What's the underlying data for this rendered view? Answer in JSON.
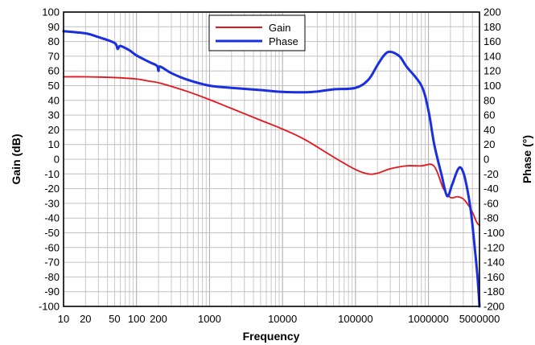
{
  "chart_data": {
    "type": "line",
    "title": "",
    "xlabel": "Frequency",
    "ylabel_left": "Gain (dB)",
    "ylabel_right": "Phase (°)",
    "x_scale": "log",
    "xlim": [
      10,
      5000000
    ],
    "ylim_left": [
      -100,
      100
    ],
    "ylim_right": [
      -200,
      200
    ],
    "grid": true,
    "legend_position": "top-center",
    "x_ticks": [
      {
        "value": 10,
        "label": "10"
      },
      {
        "value": 20,
        "label": "20"
      },
      {
        "value": 50,
        "label": "50"
      },
      {
        "value": 100,
        "label": "100"
      },
      {
        "value": 200,
        "label": "200"
      },
      {
        "value": 1000,
        "label": "1000"
      },
      {
        "value": 10000,
        "label": "10000"
      },
      {
        "value": 100000,
        "label": "100000"
      },
      {
        "value": 1000000,
        "label": "1000000"
      },
      {
        "value": 5000000,
        "label": "5000000"
      }
    ],
    "y_left_ticks": [
      100,
      90,
      80,
      70,
      60,
      50,
      40,
      30,
      20,
      10,
      0,
      -10,
      -20,
      -30,
      -40,
      -50,
      -60,
      -70,
      -80,
      -90,
      -100
    ],
    "y_right_ticks": [
      200,
      180,
      160,
      140,
      120,
      100,
      80,
      60,
      40,
      20,
      0,
      -20,
      -40,
      -60,
      -80,
      -100,
      -120,
      -140,
      -160,
      -180,
      -200
    ],
    "series": [
      {
        "name": "Gain",
        "axis": "left",
        "color": "#e8141b",
        "points": [
          [
            10,
            56
          ],
          [
            20,
            56
          ],
          [
            50,
            55.5
          ],
          [
            100,
            54.5
          ],
          [
            150,
            53
          ],
          [
            200,
            52
          ],
          [
            300,
            49.5
          ],
          [
            500,
            46
          ],
          [
            1000,
            40.5
          ],
          [
            2000,
            34.5
          ],
          [
            5000,
            26.5
          ],
          [
            10000,
            20.5
          ],
          [
            20000,
            13.5
          ],
          [
            50000,
            1.5
          ],
          [
            100000,
            -7
          ],
          [
            150000,
            -10
          ],
          [
            200000,
            -9.5
          ],
          [
            300000,
            -6.5
          ],
          [
            500000,
            -4.5
          ],
          [
            800000,
            -4.5
          ],
          [
            1100000,
            -3.5
          ],
          [
            1300000,
            -8
          ],
          [
            1600000,
            -20
          ],
          [
            2000000,
            -26
          ],
          [
            2500000,
            -25.5
          ],
          [
            3000000,
            -27
          ],
          [
            3500000,
            -31
          ],
          [
            4000000,
            -36
          ],
          [
            4600000,
            -43
          ],
          [
            5000000,
            -45
          ]
        ]
      },
      {
        "name": "Phase",
        "axis": "right",
        "color": "#1a2fe0",
        "points": [
          [
            10,
            174
          ],
          [
            20,
            171
          ],
          [
            30,
            166
          ],
          [
            50,
            158
          ],
          [
            55,
            150
          ],
          [
            60,
            154
          ],
          [
            80,
            148
          ],
          [
            100,
            141
          ],
          [
            150,
            132
          ],
          [
            190,
            127
          ],
          [
            200,
            120
          ],
          [
            210,
            126
          ],
          [
            300,
            117
          ],
          [
            500,
            108
          ],
          [
            1000,
            100
          ],
          [
            2000,
            97
          ],
          [
            5000,
            94
          ],
          [
            10000,
            91.5
          ],
          [
            20000,
            91
          ],
          [
            30000,
            92
          ],
          [
            50000,
            95
          ],
          [
            100000,
            97
          ],
          [
            150000,
            108
          ],
          [
            200000,
            128
          ],
          [
            250000,
            142
          ],
          [
            300000,
            146
          ],
          [
            400000,
            140
          ],
          [
            500000,
            126
          ],
          [
            800000,
            100
          ],
          [
            1000000,
            66
          ],
          [
            1200000,
            20
          ],
          [
            1500000,
            -20
          ],
          [
            1800000,
            -50
          ],
          [
            2100000,
            -35
          ],
          [
            2500000,
            -15
          ],
          [
            2800000,
            -12
          ],
          [
            3200000,
            -28
          ],
          [
            3800000,
            -70
          ],
          [
            4300000,
            -120
          ],
          [
            4700000,
            -160
          ],
          [
            5000000,
            -200
          ]
        ]
      }
    ]
  }
}
